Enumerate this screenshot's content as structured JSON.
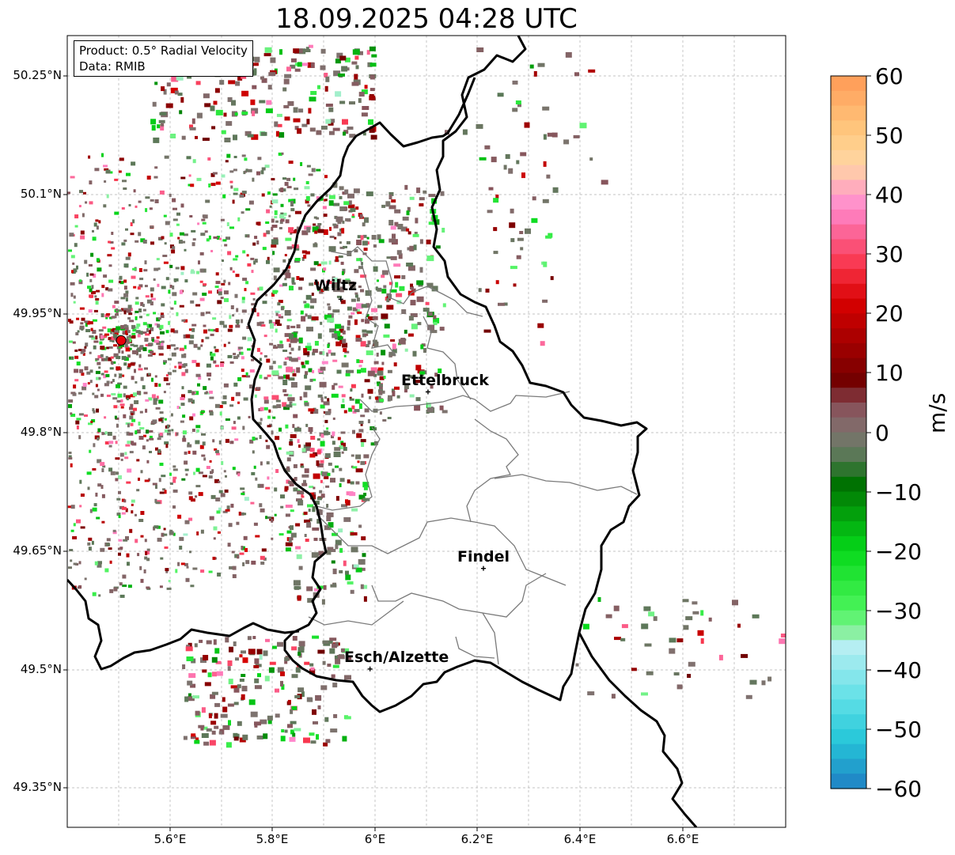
{
  "title": "18.09.2025 04:28 UTC",
  "info_box": {
    "product": "Product: 0.5° Radial Velocity",
    "data_source": "Data: RMIB"
  },
  "map": {
    "lon_range": [
      5.4,
      6.8
    ],
    "lat_range": [
      49.3,
      50.3
    ],
    "lat_ticks": [
      "50.25°N",
      "50.1°N",
      "49.95°N",
      "49.8°N",
      "49.65°N",
      "49.5°N",
      "49.35°N"
    ],
    "lon_ticks": [
      "5.6°E",
      "5.8°E",
      "6°E",
      "6.2°E",
      "6.4°E",
      "6.6°E"
    ],
    "radar_site": {
      "lon": 5.505,
      "lat": 49.915,
      "color": "#e8000b"
    },
    "cities": [
      {
        "name": "Wiltz",
        "lon": 5.933,
        "lat": 49.967
      },
      {
        "name": "Ettelbruck",
        "lon": 6.103,
        "lat": 49.85
      },
      {
        "name": "Findel",
        "lon": 6.211,
        "lat": 49.627
      },
      {
        "name": "Esch/Alzette",
        "lon": 5.99,
        "lat": 49.5
      }
    ]
  },
  "colorbar": {
    "label": "m/s",
    "min": -60,
    "max": 60,
    "ticks": [
      "60",
      "50",
      "40",
      "30",
      "20",
      "10",
      "0",
      "−10",
      "−20",
      "−30",
      "−40",
      "−50",
      "−60"
    ],
    "stops": [
      {
        "v": -60,
        "c": "#1f7fc4"
      },
      {
        "v": -52,
        "c": "#25c6d8"
      },
      {
        "v": -45,
        "c": "#5fe0e6"
      },
      {
        "v": -36,
        "c": "#b7eef2"
      },
      {
        "v": -34,
        "c": "#8ff0a8"
      },
      {
        "v": -30,
        "c": "#4cf45c"
      },
      {
        "v": -20,
        "c": "#06d91a"
      },
      {
        "v": -8,
        "c": "#006b00"
      },
      {
        "v": -5,
        "c": "#4f7a4f"
      },
      {
        "v": 0,
        "c": "#7f7370"
      },
      {
        "v": 5,
        "c": "#8a4b55"
      },
      {
        "v": 8,
        "c": "#6e0000"
      },
      {
        "v": 22,
        "c": "#d80000"
      },
      {
        "v": 28,
        "c": "#f8344a"
      },
      {
        "v": 38,
        "c": "#ff8ad0"
      },
      {
        "v": 45,
        "c": "#ffd6a4"
      },
      {
        "v": 50,
        "c": "#ffcb82"
      },
      {
        "v": 60,
        "c": "#ff9a55"
      }
    ]
  }
}
